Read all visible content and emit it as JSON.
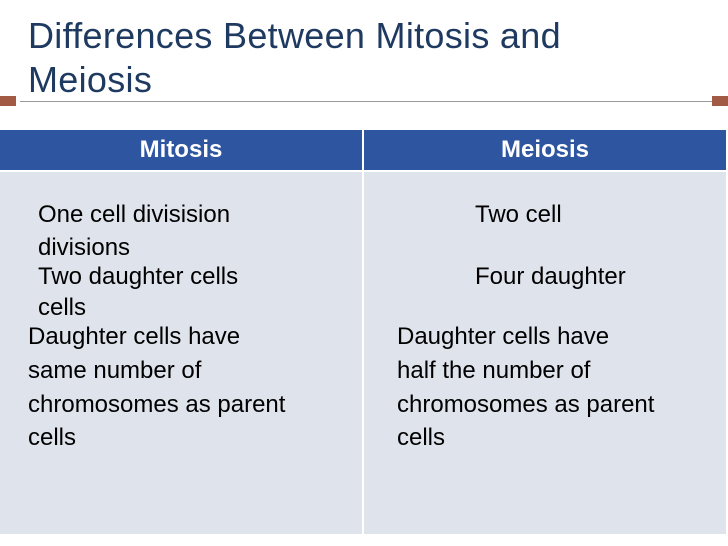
{
  "title": "Differences Between Mitosis and Meiosis",
  "columns": [
    {
      "header": "Mitosis",
      "lines": [
        "One cell divisision",
        "divisions",
        "Two daughter cells",
        "cells",
        "Daughter cells have",
        "same number of",
        "chromosomes as parent",
        "cells"
      ]
    },
    {
      "header": "Meiosis",
      "lines": [
        "Two cell",
        "Four daughter",
        "Daughter cells have",
        "half the number of",
        "chromosomes as parent",
        "cells"
      ]
    }
  ]
}
